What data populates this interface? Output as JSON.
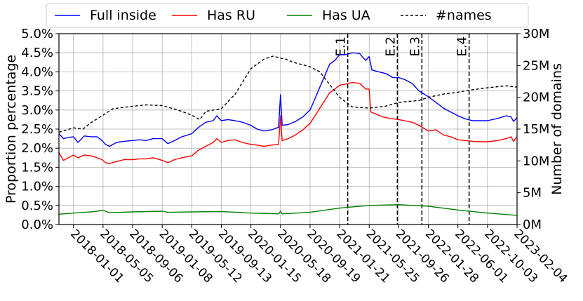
{
  "chart_data": {
    "type": "line",
    "ylabel": "Proportion percentage",
    "y2label": "Number of domains",
    "ylim": [
      0,
      5.0
    ],
    "y2lim": [
      0,
      30
    ],
    "y_ticks": [
      "0.0%",
      "0.5%",
      "1.0%",
      "1.5%",
      "2.0%",
      "2.5%",
      "3.0%",
      "3.5%",
      "4.0%",
      "4.5%",
      "5.0%"
    ],
    "y2_ticks": [
      "0M",
      "5M",
      "10M",
      "15M",
      "20M",
      "25M",
      "30M"
    ],
    "x_range": [
      "2017-11-01",
      "2023-02-04"
    ],
    "x_ticks": [
      "2018-01-01",
      "2018-05-05",
      "2018-09-06",
      "2019-01-08",
      "2019-05-12",
      "2019-09-13",
      "2020-01-15",
      "2020-05-18",
      "2020-09-19",
      "2021-01-21",
      "2021-05-25",
      "2021-09-26",
      "2022-01-28",
      "2022-06-01",
      "2022-10-03",
      "2023-02-04"
    ],
    "grid": true,
    "legend_position": "top",
    "series": [
      {
        "name": "Full inside",
        "color": "#0000ff",
        "style": "solid",
        "axis": "left",
        "points": [
          [
            "2017-11-01",
            2.38
          ],
          [
            "2017-11-20",
            2.25
          ],
          [
            "2017-12-10",
            2.28
          ],
          [
            "2018-01-01",
            2.3
          ],
          [
            "2018-01-20",
            2.15
          ],
          [
            "2018-02-15",
            2.32
          ],
          [
            "2018-03-15",
            2.3
          ],
          [
            "2018-04-10",
            2.3
          ],
          [
            "2018-05-01",
            2.2
          ],
          [
            "2018-05-15",
            2.1
          ],
          [
            "2018-06-01",
            2.05
          ],
          [
            "2018-07-01",
            2.15
          ],
          [
            "2018-08-01",
            2.18
          ],
          [
            "2018-09-06",
            2.2
          ],
          [
            "2018-10-05",
            2.22
          ],
          [
            "2018-11-01",
            2.2
          ],
          [
            "2018-12-01",
            2.25
          ],
          [
            "2019-01-08",
            2.25
          ],
          [
            "2019-02-01",
            2.12
          ],
          [
            "2019-03-01",
            2.2
          ],
          [
            "2019-04-01",
            2.3
          ],
          [
            "2019-05-12",
            2.38
          ],
          [
            "2019-06-10",
            2.55
          ],
          [
            "2019-07-10",
            2.68
          ],
          [
            "2019-08-10",
            2.72
          ],
          [
            "2019-08-25",
            2.85
          ],
          [
            "2019-09-13",
            2.72
          ],
          [
            "2019-10-10",
            2.75
          ],
          [
            "2019-11-10",
            2.72
          ],
          [
            "2019-12-10",
            2.68
          ],
          [
            "2020-01-15",
            2.6
          ],
          [
            "2020-02-10",
            2.5
          ],
          [
            "2020-03-10",
            2.45
          ],
          [
            "2020-04-10",
            2.48
          ],
          [
            "2020-05-10",
            2.55
          ],
          [
            "2020-05-18",
            3.4
          ],
          [
            "2020-05-25",
            2.6
          ],
          [
            "2020-06-20",
            2.62
          ],
          [
            "2020-07-20",
            2.7
          ],
          [
            "2020-08-20",
            2.82
          ],
          [
            "2020-09-19",
            3.0
          ],
          [
            "2020-10-10",
            3.3
          ],
          [
            "2020-10-30",
            3.6
          ],
          [
            "2020-11-20",
            3.9
          ],
          [
            "2020-12-10",
            4.2
          ],
          [
            "2021-01-01",
            4.3
          ],
          [
            "2021-01-21",
            4.45
          ],
          [
            "2021-02-15",
            4.45
          ],
          [
            "2021-03-15",
            4.5
          ],
          [
            "2021-04-15",
            4.48
          ],
          [
            "2021-05-10",
            4.3
          ],
          [
            "2021-05-25",
            4.4
          ],
          [
            "2021-06-05",
            4.05
          ],
          [
            "2021-07-05",
            4.0
          ],
          [
            "2021-08-05",
            3.95
          ],
          [
            "2021-09-01",
            3.85
          ],
          [
            "2021-09-26",
            3.85
          ],
          [
            "2021-10-20",
            3.8
          ],
          [
            "2021-11-20",
            3.7
          ],
          [
            "2021-12-20",
            3.5
          ],
          [
            "2022-01-28",
            3.35
          ],
          [
            "2022-03-01",
            3.2
          ],
          [
            "2022-04-01",
            3.05
          ],
          [
            "2022-05-01",
            2.95
          ],
          [
            "2022-06-01",
            2.85
          ],
          [
            "2022-07-01",
            2.77
          ],
          [
            "2022-08-01",
            2.72
          ],
          [
            "2022-09-01",
            2.72
          ],
          [
            "2022-10-03",
            2.72
          ],
          [
            "2022-11-15",
            2.78
          ],
          [
            "2022-12-20",
            2.85
          ],
          [
            "2023-01-10",
            2.82
          ],
          [
            "2023-01-20",
            2.7
          ],
          [
            "2023-02-04",
            2.8
          ]
        ]
      },
      {
        "name": "Has RU",
        "color": "#ff0000",
        "style": "solid",
        "axis": "left",
        "points": [
          [
            "2017-11-01",
            1.88
          ],
          [
            "2017-11-20",
            1.68
          ],
          [
            "2017-12-10",
            1.75
          ],
          [
            "2018-01-01",
            1.82
          ],
          [
            "2018-01-20",
            1.75
          ],
          [
            "2018-02-15",
            1.82
          ],
          [
            "2018-03-15",
            1.8
          ],
          [
            "2018-04-10",
            1.75
          ],
          [
            "2018-05-01",
            1.7
          ],
          [
            "2018-05-15",
            1.62
          ],
          [
            "2018-06-01",
            1.6
          ],
          [
            "2018-07-01",
            1.65
          ],
          [
            "2018-08-01",
            1.7
          ],
          [
            "2018-09-06",
            1.7
          ],
          [
            "2018-10-05",
            1.72
          ],
          [
            "2018-11-01",
            1.72
          ],
          [
            "2018-12-01",
            1.75
          ],
          [
            "2019-01-08",
            1.68
          ],
          [
            "2019-02-01",
            1.62
          ],
          [
            "2019-03-01",
            1.7
          ],
          [
            "2019-04-01",
            1.75
          ],
          [
            "2019-05-12",
            1.8
          ],
          [
            "2019-06-10",
            1.95
          ],
          [
            "2019-07-10",
            2.05
          ],
          [
            "2019-08-10",
            2.15
          ],
          [
            "2019-08-25",
            2.25
          ],
          [
            "2019-09-13",
            2.15
          ],
          [
            "2019-10-10",
            2.2
          ],
          [
            "2019-11-10",
            2.22
          ],
          [
            "2019-12-10",
            2.15
          ],
          [
            "2020-01-15",
            2.1
          ],
          [
            "2020-02-10",
            2.08
          ],
          [
            "2020-03-10",
            2.05
          ],
          [
            "2020-04-10",
            2.08
          ],
          [
            "2020-05-10",
            2.1
          ],
          [
            "2020-05-18",
            2.85
          ],
          [
            "2020-05-25",
            2.2
          ],
          [
            "2020-06-20",
            2.25
          ],
          [
            "2020-07-20",
            2.35
          ],
          [
            "2020-08-20",
            2.48
          ],
          [
            "2020-09-19",
            2.65
          ],
          [
            "2020-10-10",
            2.85
          ],
          [
            "2020-10-30",
            3.05
          ],
          [
            "2020-11-20",
            3.25
          ],
          [
            "2020-12-10",
            3.45
          ],
          [
            "2021-01-01",
            3.55
          ],
          [
            "2021-01-21",
            3.65
          ],
          [
            "2021-02-15",
            3.68
          ],
          [
            "2021-03-15",
            3.72
          ],
          [
            "2021-04-15",
            3.7
          ],
          [
            "2021-05-10",
            3.55
          ],
          [
            "2021-05-25",
            3.55
          ],
          [
            "2021-06-01",
            2.95
          ],
          [
            "2021-06-20",
            2.9
          ],
          [
            "2021-07-20",
            2.82
          ],
          [
            "2021-08-20",
            2.78
          ],
          [
            "2021-09-26",
            2.75
          ],
          [
            "2021-10-20",
            2.72
          ],
          [
            "2021-11-20",
            2.68
          ],
          [
            "2021-12-20",
            2.6
          ],
          [
            "2022-01-28",
            2.45
          ],
          [
            "2022-03-01",
            2.48
          ],
          [
            "2022-04-01",
            2.35
          ],
          [
            "2022-05-01",
            2.3
          ],
          [
            "2022-06-01",
            2.22
          ],
          [
            "2022-07-01",
            2.2
          ],
          [
            "2022-08-01",
            2.18
          ],
          [
            "2022-09-01",
            2.17
          ],
          [
            "2022-10-03",
            2.17
          ],
          [
            "2022-11-15",
            2.2
          ],
          [
            "2022-12-20",
            2.25
          ],
          [
            "2023-01-10",
            2.3
          ],
          [
            "2023-01-20",
            2.18
          ],
          [
            "2023-02-04",
            2.3
          ]
        ]
      },
      {
        "name": "Has UA",
        "color": "#008000",
        "style": "solid",
        "axis": "left",
        "points": [
          [
            "2017-11-01",
            0.27
          ],
          [
            "2018-01-01",
            0.3
          ],
          [
            "2018-03-15",
            0.33
          ],
          [
            "2018-05-05",
            0.37
          ],
          [
            "2018-06-01",
            0.31
          ],
          [
            "2018-09-06",
            0.33
          ],
          [
            "2019-01-08",
            0.35
          ],
          [
            "2019-02-01",
            0.32
          ],
          [
            "2019-05-12",
            0.33
          ],
          [
            "2019-09-13",
            0.34
          ],
          [
            "2020-01-15",
            0.3
          ],
          [
            "2020-05-10",
            0.28
          ],
          [
            "2020-05-18",
            0.35
          ],
          [
            "2020-05-25",
            0.28
          ],
          [
            "2020-09-19",
            0.32
          ],
          [
            "2021-01-21",
            0.43
          ],
          [
            "2021-05-25",
            0.5
          ],
          [
            "2021-09-26",
            0.52
          ],
          [
            "2022-01-28",
            0.48
          ],
          [
            "2022-06-01",
            0.38
          ],
          [
            "2022-10-03",
            0.3
          ],
          [
            "2023-02-04",
            0.24
          ]
        ]
      },
      {
        "name": "#names",
        "color": "#000000",
        "style": "dashed",
        "axis": "right",
        "points": [
          [
            "2017-11-01",
            14.5
          ],
          [
            "2018-01-01",
            15.2
          ],
          [
            "2018-02-10",
            15.0
          ],
          [
            "2018-03-15",
            16.0
          ],
          [
            "2018-05-05",
            17.2
          ],
          [
            "2018-06-15",
            18.2
          ],
          [
            "2018-09-06",
            18.6
          ],
          [
            "2018-11-01",
            18.8
          ],
          [
            "2019-01-08",
            18.7
          ],
          [
            "2019-03-15",
            18.0
          ],
          [
            "2019-05-12",
            17.2
          ],
          [
            "2019-06-15",
            16.5
          ],
          [
            "2019-07-10",
            17.8
          ],
          [
            "2019-09-13",
            18.2
          ],
          [
            "2019-11-10",
            20.5
          ],
          [
            "2020-01-15",
            24.5
          ],
          [
            "2020-03-10",
            26.0
          ],
          [
            "2020-04-20",
            26.5
          ],
          [
            "2020-05-10",
            26.2
          ],
          [
            "2020-06-10",
            26.0
          ],
          [
            "2020-07-10",
            25.5
          ],
          [
            "2020-08-10",
            25.2
          ],
          [
            "2020-09-19",
            24.8
          ],
          [
            "2020-10-30",
            24.0
          ],
          [
            "2020-11-30",
            22.5
          ],
          [
            "2021-01-21",
            20.0
          ],
          [
            "2021-03-15",
            18.5
          ],
          [
            "2021-05-25",
            18.3
          ],
          [
            "2021-08-01",
            18.6
          ],
          [
            "2021-09-26",
            19.2
          ],
          [
            "2021-12-20",
            19.5
          ],
          [
            "2022-01-28",
            20.0
          ],
          [
            "2022-04-01",
            20.5
          ],
          [
            "2022-06-01",
            20.8
          ],
          [
            "2022-08-01",
            21.2
          ],
          [
            "2022-10-03",
            21.5
          ],
          [
            "2022-12-20",
            21.8
          ],
          [
            "2023-02-04",
            21.6
          ]
        ]
      }
    ],
    "events": [
      {
        "label": "E.1",
        "date": "2021-02-24"
      },
      {
        "label": "E.2",
        "date": "2021-09-20"
      },
      {
        "label": "E.3",
        "date": "2022-01-01"
      },
      {
        "label": "E.4",
        "date": "2022-07-18"
      }
    ]
  }
}
